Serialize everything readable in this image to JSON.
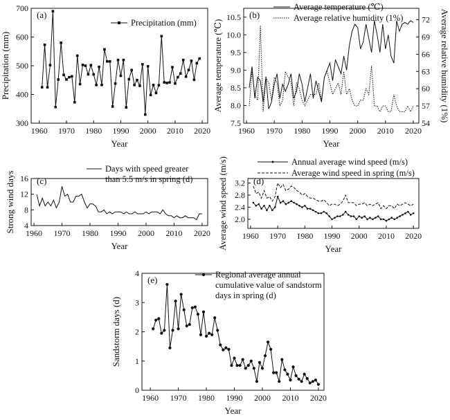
{
  "chart_data": [
    {
      "id": "a",
      "panel_label": "(a)",
      "type": "line",
      "xlabel": "Year",
      "ylabel": "Precipitation (mm)",
      "xlim": [
        1957,
        2022
      ],
      "ylim": [
        300,
        700
      ],
      "xticks": [
        1960,
        1970,
        1980,
        1990,
        2000,
        2010,
        2020
      ],
      "yticks": [
        300,
        400,
        500,
        600,
        700
      ],
      "legend_position": "top-right",
      "series": [
        {
          "name": "Precipitation (mm)",
          "style": "solid-square",
          "x": [
            1961,
            1962,
            1963,
            1964,
            1965,
            1966,
            1967,
            1968,
            1969,
            1970,
            1971,
            1972,
            1973,
            1974,
            1975,
            1976,
            1977,
            1978,
            1979,
            1980,
            1981,
            1982,
            1983,
            1984,
            1985,
            1986,
            1987,
            1988,
            1989,
            1990,
            1991,
            1992,
            1993,
            1994,
            1995,
            1996,
            1997,
            1998,
            1999,
            2000,
            2001,
            2002,
            2003,
            2004,
            2005,
            2006,
            2007,
            2008,
            2009,
            2010,
            2011,
            2012,
            2013,
            2014,
            2015,
            2016,
            2017,
            2018,
            2019
          ],
          "values": [
            425,
            573,
            425,
            502,
            690,
            356,
            452,
            580,
            468,
            452,
            460,
            463,
            373,
            535,
            436,
            503,
            500,
            470,
            502,
            470,
            433,
            496,
            433,
            557,
            515,
            515,
            358,
            438,
            520,
            465,
            520,
            355,
            453,
            485,
            433,
            450,
            430,
            505,
            330,
            498,
            398,
            433,
            405,
            432,
            603,
            442,
            440,
            442,
            495,
            438,
            460,
            473,
            520,
            462,
            485,
            517,
            451,
            509,
            525
          ]
        }
      ]
    },
    {
      "id": "b",
      "panel_label": "(b)",
      "type": "line",
      "xlabel": "Year",
      "ylabel": "Average temperature (℃)",
      "ylabel_right": "Average relative humidity (1%)",
      "xlim": [
        1959,
        2022
      ],
      "ylim": [
        7.5,
        10.75
      ],
      "ylim_right": [
        54,
        74
      ],
      "xticks": [
        1960,
        1970,
        1980,
        1990,
        2000,
        2010,
        2020
      ],
      "yticks": [
        7.5,
        8.0,
        8.5,
        9.0,
        9.5,
        10.0,
        10.5
      ],
      "yticks_right": [
        54,
        57,
        60,
        63,
        66,
        69,
        72
      ],
      "legend_position": "top-right",
      "series": [
        {
          "name": "Average temperature (℃)",
          "style": "solid",
          "axis": "left",
          "x": [
            1961,
            1962,
            1963,
            1964,
            1965,
            1966,
            1967,
            1968,
            1969,
            1970,
            1971,
            1972,
            1973,
            1974,
            1975,
            1976,
            1977,
            1978,
            1979,
            1980,
            1981,
            1982,
            1983,
            1984,
            1985,
            1986,
            1987,
            1988,
            1989,
            1990,
            1991,
            1992,
            1993,
            1994,
            1995,
            1996,
            1997,
            1998,
            1999,
            2000,
            2001,
            2002,
            2003,
            2004,
            2005,
            2006,
            2007,
            2008,
            2009,
            2010,
            2011,
            2012,
            2013,
            2014,
            2015,
            2016,
            2017,
            2018,
            2019,
            2020
          ],
          "values": [
            8.5,
            9.1,
            8.2,
            8.8,
            8.7,
            8.1,
            8.8,
            7.9,
            8.1,
            8.6,
            8.9,
            8.2,
            8.6,
            8.4,
            8.6,
            8.9,
            8.2,
            8.4,
            8.9,
            8.6,
            8.1,
            8.5,
            8.9,
            8.2,
            8.7,
            8.4,
            8.1,
            8.8,
            9.0,
            9.2,
            8.7,
            9.3,
            9.1,
            8.9,
            9.4,
            9.0,
            9.7,
            10.1,
            10.3,
            10.2,
            9.6,
            9.8,
            10.3,
            9.9,
            9.5,
            10.4,
            10.0,
            9.5,
            10.3,
            9.6,
            10.0,
            9.4,
            9.2,
            10.4,
            10.1,
            10.3,
            10.35,
            10.3,
            10.4,
            10.35
          ]
        },
        {
          "name": "Average relative humidity (1%)",
          "style": "dotted",
          "axis": "right",
          "x": [
            1961,
            1962,
            1963,
            1964,
            1965,
            1966,
            1967,
            1968,
            1969,
            1970,
            1971,
            1972,
            1973,
            1974,
            1975,
            1976,
            1977,
            1978,
            1979,
            1980,
            1981,
            1982,
            1983,
            1984,
            1985,
            1986,
            1987,
            1988,
            1989,
            1990,
            1991,
            1992,
            1993,
            1994,
            1995,
            1996,
            1997,
            1998,
            1999,
            2000,
            2001,
            2002,
            2003,
            2004,
            2005,
            2006,
            2007,
            2008,
            2009,
            2010,
            2011,
            2012,
            2013,
            2014,
            2015,
            2016,
            2017,
            2018,
            2019,
            2020
          ],
          "values": [
            57,
            63,
            59,
            58,
            71,
            56,
            62,
            61,
            58,
            62,
            61,
            57,
            58,
            63,
            62,
            61,
            57,
            61,
            60,
            58,
            57,
            58,
            59,
            59,
            59,
            61,
            58,
            62,
            63,
            61,
            59,
            60,
            61,
            59,
            63,
            59,
            60,
            58,
            57,
            57,
            58,
            58,
            60,
            59,
            64,
            57,
            57,
            56,
            57,
            57,
            56,
            56,
            59,
            57,
            56,
            56,
            56,
            57,
            56,
            57
          ]
        }
      ]
    },
    {
      "id": "c",
      "panel_label": "(c)",
      "type": "line",
      "xlabel": "Year",
      "ylabel": "Strong wind days",
      "xlim": [
        1959,
        2022
      ],
      "ylim": [
        4,
        16
      ],
      "xticks": [
        1960,
        1970,
        1980,
        1990,
        2000,
        2010,
        2020
      ],
      "yticks": [
        4,
        8,
        12,
        16
      ],
      "legend_position": "top-right",
      "series": [
        {
          "name": "Days with speed greater than 5.5 m/s in spring (d)",
          "legend_lines": [
            "Days with speed greater",
            "than 5.5 m/s in spring (d)"
          ],
          "style": "solid",
          "x": [
            1961,
            1962,
            1963,
            1964,
            1965,
            1966,
            1967,
            1968,
            1969,
            1970,
            1971,
            1972,
            1973,
            1974,
            1975,
            1976,
            1977,
            1978,
            1979,
            1980,
            1981,
            1982,
            1983,
            1984,
            1985,
            1986,
            1987,
            1988,
            1989,
            1990,
            1991,
            1992,
            1993,
            1994,
            1995,
            1996,
            1997,
            1998,
            1999,
            2000,
            2001,
            2002,
            2003,
            2004,
            2005,
            2006,
            2007,
            2008,
            2009,
            2010,
            2011,
            2012,
            2013,
            2014,
            2015,
            2016,
            2017,
            2018,
            2019,
            2020
          ],
          "values": [
            12,
            9,
            11,
            9,
            10,
            9,
            10.5,
            8.5,
            10,
            14,
            11.5,
            12,
            10,
            10,
            11.5,
            11.5,
            12,
            10,
            8.5,
            9.5,
            9.5,
            9,
            7.5,
            7.5,
            8,
            7,
            7.5,
            7,
            7.5,
            7.5,
            7.5,
            7,
            7.5,
            7,
            7,
            7.5,
            7,
            7,
            7,
            7.5,
            7,
            7.5,
            7.5,
            7.5,
            7,
            8,
            7,
            6.5,
            6.5,
            6,
            6.5,
            6,
            6,
            6.5,
            6,
            6,
            6,
            5.5,
            7,
            7
          ]
        }
      ]
    },
    {
      "id": "d",
      "panel_label": "(d)",
      "type": "line",
      "xlabel": "Year",
      "ylabel": "Average wind speed (m/s)",
      "xlim": [
        1959,
        2022
      ],
      "ylim": [
        1.7,
        3.35
      ],
      "xticks": [
        1960,
        1970,
        1980,
        1990,
        2000,
        2010,
        2020
      ],
      "yticks": [
        2.0,
        2.4,
        2.8,
        3.2
      ],
      "legend_position": "top-right",
      "series": [
        {
          "name": "Annual average wind speed (m/s)",
          "style": "solid-marker",
          "x": [
            1961,
            1962,
            1963,
            1964,
            1965,
            1966,
            1967,
            1968,
            1969,
            1970,
            1971,
            1972,
            1973,
            1974,
            1975,
            1976,
            1977,
            1978,
            1979,
            1980,
            1981,
            1982,
            1983,
            1984,
            1985,
            1986,
            1987,
            1988,
            1989,
            1990,
            1991,
            1992,
            1993,
            1994,
            1995,
            1996,
            1997,
            1998,
            1999,
            2000,
            2001,
            2002,
            2003,
            2004,
            2005,
            2006,
            2007,
            2008,
            2009,
            2010,
            2011,
            2012,
            2013,
            2014,
            2015,
            2016,
            2017,
            2018,
            2019,
            2020
          ],
          "values": [
            2.55,
            2.45,
            2.5,
            2.35,
            2.45,
            2.3,
            2.45,
            2.3,
            2.4,
            2.75,
            2.55,
            2.6,
            2.5,
            2.55,
            2.6,
            2.55,
            2.5,
            2.45,
            2.4,
            2.45,
            2.35,
            2.35,
            2.3,
            2.25,
            2.2,
            2.2,
            2.25,
            2.2,
            2.1,
            2.0,
            2.05,
            2.1,
            2.1,
            2.15,
            2.25,
            2.15,
            2.1,
            2.1,
            2.0,
            2.1,
            2.05,
            2.1,
            2.0,
            2.05,
            2.0,
            2.05,
            2.1,
            2.0,
            2.0,
            1.95,
            2.0,
            2.05,
            2.0,
            2.05,
            2.1,
            2.15,
            2.2,
            2.25,
            2.15,
            2.2
          ]
        },
        {
          "name": "Average wind speed in spring (m/s)",
          "style": "dashed",
          "x": [
            1961,
            1962,
            1963,
            1964,
            1965,
            1966,
            1967,
            1968,
            1969,
            1970,
            1971,
            1972,
            1973,
            1974,
            1975,
            1976,
            1977,
            1978,
            1979,
            1980,
            1981,
            1982,
            1983,
            1984,
            1985,
            1986,
            1987,
            1988,
            1989,
            1990,
            1991,
            1992,
            1993,
            1994,
            1995,
            1996,
            1997,
            1998,
            1999,
            2000,
            2001,
            2002,
            2003,
            2004,
            2005,
            2006,
            2007,
            2008,
            2009,
            2010,
            2011,
            2012,
            2013,
            2014,
            2015,
            2016,
            2017,
            2018,
            2019,
            2020
          ],
          "values": [
            3.1,
            2.85,
            2.9,
            2.7,
            2.95,
            2.7,
            2.75,
            2.6,
            2.75,
            3.2,
            3.05,
            3.15,
            2.95,
            3.0,
            3.1,
            3.05,
            2.95,
            2.9,
            2.8,
            2.85,
            2.75,
            2.7,
            2.7,
            2.65,
            2.6,
            2.6,
            2.65,
            2.55,
            2.45,
            2.5,
            2.5,
            2.45,
            2.5,
            2.6,
            2.8,
            2.55,
            2.55,
            2.55,
            2.45,
            2.5,
            2.5,
            2.55,
            2.45,
            2.5,
            2.45,
            2.5,
            2.55,
            2.35,
            2.45,
            2.35,
            2.45,
            2.45,
            2.35,
            2.5,
            2.45,
            2.5,
            2.55,
            2.5,
            2.45,
            2.5
          ]
        }
      ]
    },
    {
      "id": "e",
      "panel_label": "(e)",
      "type": "line",
      "xlabel": "Year",
      "ylabel": "Sandstorm days (d)",
      "xlim": [
        1957,
        2022
      ],
      "ylim": [
        0,
        4
      ],
      "xticks": [
        1960,
        1970,
        1980,
        1990,
        2000,
        2010,
        2020
      ],
      "yticks": [
        0,
        1,
        2,
        3,
        4
      ],
      "legend_position": "top-right",
      "series": [
        {
          "name": "Regional average annual cumulative value of sandstorm days in spring (d)",
          "legend_lines": [
            "Regional average annual",
            "cumulative value of sandstorm",
            "days in spring (d)"
          ],
          "style": "solid-circle",
          "x": [
            1961,
            1962,
            1963,
            1964,
            1965,
            1966,
            1967,
            1968,
            1969,
            1970,
            1971,
            1972,
            1973,
            1974,
            1975,
            1976,
            1977,
            1978,
            1979,
            1980,
            1981,
            1982,
            1983,
            1984,
            1985,
            1986,
            1987,
            1988,
            1989,
            1990,
            1991,
            1992,
            1993,
            1994,
            1995,
            1996,
            1997,
            1998,
            1999,
            2000,
            2001,
            2002,
            2003,
            2004,
            2005,
            2006,
            2007,
            2008,
            2009,
            2010,
            2011,
            2012,
            2013,
            2014,
            2015,
            2016,
            2017,
            2018,
            2019,
            2020
          ],
          "values": [
            2.1,
            2.4,
            2.45,
            1.95,
            2.05,
            3.62,
            1.45,
            2.05,
            3.05,
            2.1,
            3.28,
            2.75,
            2.2,
            2.25,
            2.82,
            2.85,
            2.6,
            1.9,
            2.68,
            1.85,
            1.95,
            1.9,
            2.48,
            2.05,
            1.55,
            1.38,
            1.45,
            1.4,
            0.85,
            1.1,
            0.85,
            0.85,
            1.05,
            0.75,
            0.85,
            1.0,
            0.75,
            0.3,
            0.95,
            0.75,
            1.18,
            1.65,
            1.4,
            0.6,
            0.6,
            0.3,
            1.05,
            0.7,
            0.55,
            0.35,
            0.8,
            0.5,
            0.38,
            0.3,
            0.55,
            0.4,
            0.25,
            0.3,
            0.35,
            0.2
          ]
        }
      ]
    }
  ]
}
